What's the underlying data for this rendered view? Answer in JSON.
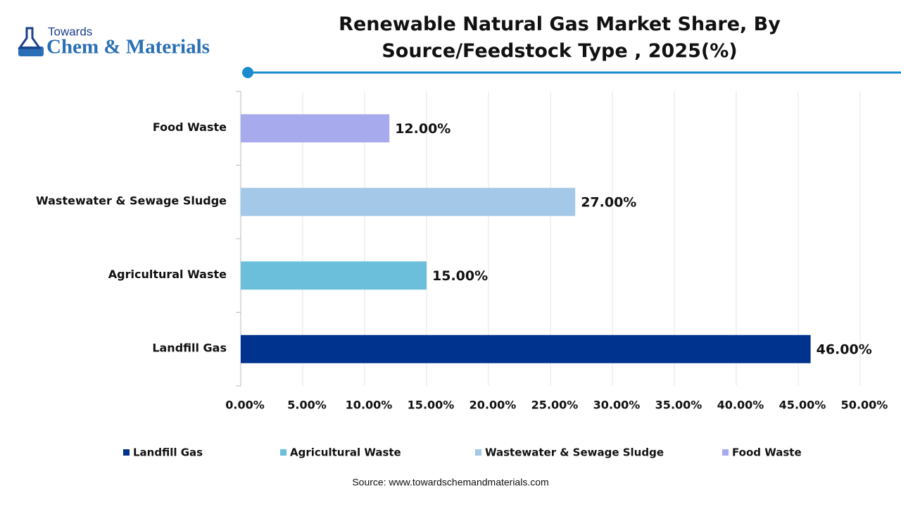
{
  "logo": {
    "line1": "Towards",
    "line2": "Chem & Materials"
  },
  "chart_data": {
    "type": "bar",
    "orientation": "horizontal",
    "title": "Renewable Natural Gas Market Share, By Source/Feedstock Type , 2025(%)",
    "categories": [
      "Landfill Gas",
      "Agricultural Waste",
      "Wastewater & Sewage Sludge",
      "Food Waste"
    ],
    "values": [
      46,
      15,
      27,
      12
    ],
    "value_labels": [
      "46.00%",
      "15.00%",
      "27.00%",
      "12.00%"
    ],
    "colors": [
      "#00338d",
      "#6bbfdb",
      "#a3c8e8",
      "#a8aaee"
    ],
    "xlim": [
      0,
      50
    ],
    "xticks": [
      {
        "value": 0,
        "label": "0.00%"
      },
      {
        "value": 5,
        "label": "5.00%"
      },
      {
        "value": 10,
        "label": "10.00%"
      },
      {
        "value": 15,
        "label": "15.00%"
      },
      {
        "value": 20,
        "label": "20.00%"
      },
      {
        "value": 25,
        "label": "25.00%"
      },
      {
        "value": 30,
        "label": "30.00%"
      },
      {
        "value": 35,
        "label": "35.00%"
      },
      {
        "value": 40,
        "label": "40.00%"
      },
      {
        "value": 45,
        "label": "45.00%"
      },
      {
        "value": 50,
        "label": "50.00%"
      }
    ],
    "grid": true,
    "legend": "bottom",
    "source": "Source: www.towardschemandmaterials.com"
  }
}
